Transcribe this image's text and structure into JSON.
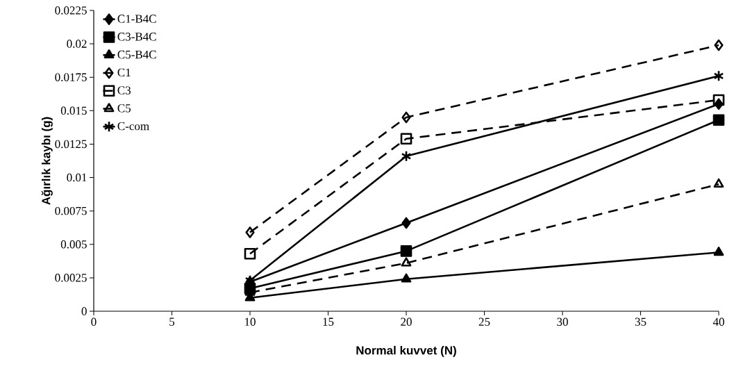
{
  "chart_data": {
    "type": "line",
    "xlabel": "Normal kuvvet (N)",
    "ylabel": "Ağırlık kaybı (g)",
    "xlim": [
      0,
      40
    ],
    "xticks": [
      0,
      5,
      10,
      15,
      20,
      25,
      30,
      35,
      40
    ],
    "ylim": [
      0,
      0.0225
    ],
    "yticks": [
      0,
      0.0025,
      0.005,
      0.0075,
      0.01,
      0.0125,
      0.015,
      0.0175,
      0.02,
      0.0225
    ],
    "x": [
      10,
      20,
      40
    ],
    "grid": false,
    "legend": "top left",
    "series": [
      {
        "name": "C1-B4C",
        "color": "#000000",
        "marker": "diamond",
        "line_style": "solid",
        "values": [
          0.0022,
          0.0066,
          0.0155
        ]
      },
      {
        "name": "C3-B4C",
        "color": "#000000",
        "marker": "square",
        "line_style": "solid",
        "values": [
          0.0017,
          0.0045,
          0.0143
        ]
      },
      {
        "name": "C5-B4C",
        "color": "#000000",
        "marker": "triangle",
        "line_style": "solid",
        "values": [
          0.001,
          0.0024,
          0.0044
        ]
      },
      {
        "name": "C1",
        "color": "#000000",
        "marker": "diamond",
        "line_style": "dashed",
        "values": [
          0.0059,
          0.0145,
          0.0199
        ]
      },
      {
        "name": "C3",
        "color": "#000000",
        "marker": "square",
        "line_style": "dashed",
        "values": [
          0.0043,
          0.0129,
          0.0158
        ]
      },
      {
        "name": "C5",
        "color": "#000000",
        "marker": "triangle",
        "line_style": "dashed",
        "values": [
          0.0014,
          0.0036,
          0.0095
        ]
      },
      {
        "name": "C-com",
        "color": "#000000",
        "marker": "cross",
        "line_style": "solid",
        "values": [
          0.0023,
          0.0116,
          0.0176
        ]
      }
    ]
  }
}
